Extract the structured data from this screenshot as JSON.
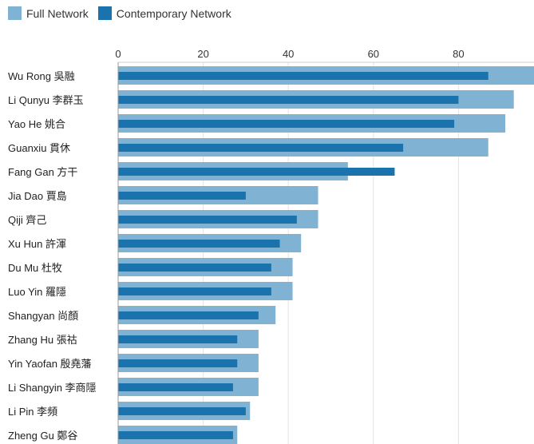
{
  "chart_data": {
    "type": "bar",
    "orientation": "horizontal",
    "title": "",
    "xlabel": "",
    "ylabel": "",
    "xlim": [
      0,
      98
    ],
    "xticks": [
      0,
      20,
      40,
      60,
      80
    ],
    "grid": true,
    "legend_position": "top-left",
    "categories": [
      "Wu Rong 吳融",
      "Li Qunyu 李群玉",
      "Yao He 姚合",
      "Guanxiu 貫休",
      "Fang Gan 方干",
      "Jia Dao 賈島",
      "Qiji 齊己",
      "Xu Hun 許渾",
      "Du Mu 杜牧",
      "Luo Yin 羅隱",
      "Shangyan 尚顏",
      "Zhang Hu 張祜",
      "Yin Yaofan 殷堯藩",
      "Li Shangyin 李商隱",
      "Li Pin 李頻",
      "Zheng Gu 鄭谷"
    ],
    "series": [
      {
        "name": "Full Network",
        "color": "#7fb2d3",
        "values": [
          98,
          93,
          91,
          87,
          54,
          47,
          47,
          43,
          41,
          41,
          37,
          33,
          33,
          33,
          31,
          28
        ]
      },
      {
        "name": "Contemporary Network",
        "color": "#1a73ad",
        "values": [
          87,
          80,
          79,
          67,
          65,
          30,
          42,
          38,
          36,
          36,
          33,
          28,
          28,
          27,
          30,
          27
        ]
      }
    ]
  }
}
